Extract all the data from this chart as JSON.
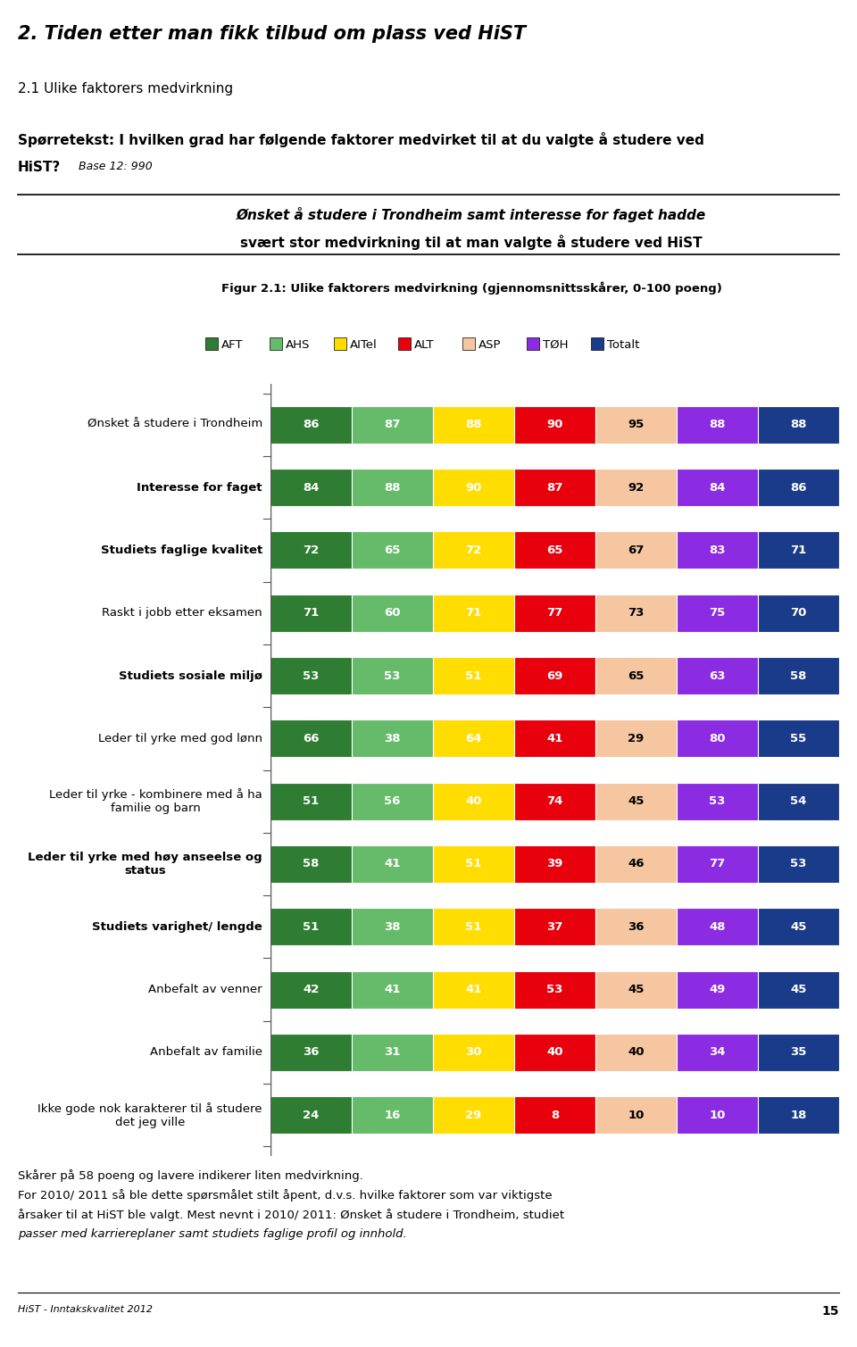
{
  "title_main": "2. Tiden etter man fikk tilbud om plass ved HiST",
  "section_title": "2.1 Ulike faktorers medvirkning",
  "question_line1": "Spørretekst: I hvilken grad har følgende faktorer medvirket til at du valgte å studere ved",
  "question_line2": "HiST?",
  "base_text": " Base 12: 990",
  "highlight_line1_italic": "Ønsket å studere i Trondheim",
  "highlight_line1_mid": " samt ",
  "highlight_line1_italic2": "interesse for faget",
  "highlight_line1_end": " hadde",
  "highlight_line2": "svært stor medvirkning til at man valgte å studere ved HiST",
  "figure_caption": "Figur 2.1: Ulike faktorers medvirkning (gjennomsnittsskårer, 0-100 poeng)",
  "legend_labels": [
    "AFT",
    "AHS",
    "AITel",
    "ALT",
    "ASP",
    "TØH",
    "Totalt"
  ],
  "bar_colors": [
    "#2e7d32",
    "#66bb6a",
    "#ffdd00",
    "#e8000d",
    "#f5c6a0",
    "#8b2be2",
    "#1a3a8a"
  ],
  "categories": [
    "Ønsket å studere i Trondheim",
    "Interesse for faget",
    "Studiets faglige kvalitet",
    "Raskt i jobb etter eksamen",
    "Studiets sosiale miljø",
    "Leder til yrke med god lønn",
    "Leder til yrke - kombinere med å ha\nfamilie og barn",
    "Leder til yrke med høy anseelse og\nstatus",
    "Studiets varighet/ lengde",
    "Anbefalt av venner",
    "Anbefalt av familie",
    "Ikke gode nok karakterer til å studere\ndet jeg ville"
  ],
  "cat_bold": [
    false,
    true,
    true,
    false,
    true,
    false,
    false,
    true,
    true,
    false,
    false,
    false
  ],
  "values": [
    [
      86,
      87,
      88,
      90,
      95,
      88,
      88
    ],
    [
      84,
      88,
      90,
      87,
      92,
      84,
      86
    ],
    [
      72,
      65,
      72,
      65,
      67,
      83,
      71
    ],
    [
      71,
      60,
      71,
      77,
      73,
      75,
      70
    ],
    [
      53,
      53,
      51,
      69,
      65,
      63,
      58
    ],
    [
      66,
      38,
      64,
      41,
      29,
      80,
      55
    ],
    [
      51,
      56,
      40,
      74,
      45,
      53,
      54
    ],
    [
      58,
      41,
      51,
      39,
      46,
      77,
      53
    ],
    [
      51,
      38,
      51,
      37,
      36,
      48,
      45
    ],
    [
      42,
      41,
      41,
      53,
      45,
      49,
      45
    ],
    [
      36,
      31,
      30,
      40,
      40,
      34,
      35
    ],
    [
      24,
      16,
      29,
      8,
      10,
      10,
      18
    ]
  ],
  "text_white_idx": [
    0,
    1,
    2,
    3,
    5,
    6
  ],
  "text_dark_idx": [
    4
  ],
  "footer_text": "HiST - Inntakskvalitet 2012",
  "footer_page": "15",
  "note_lines": [
    "Skårer på 58 poeng og lavere indikerer liten medvirkning.",
    "For 2010/ 2011 så ble dette spørsmålet stilt åpent, d.v.s. hvilke faktorer som var viktigste",
    "årsaker til at HiST ble valgt. Mest nevnt i 2010/ 2011: Ønsket å studere i Trondheim, studiet",
    "passer med karriereplaner samt studiets faglige profil og innhold."
  ],
  "background": "#ffffff"
}
